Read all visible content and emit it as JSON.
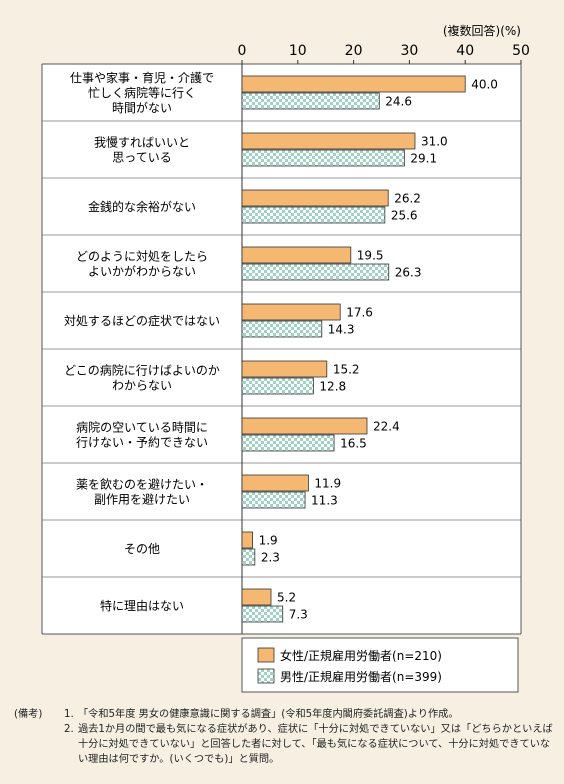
{
  "chart_data": {
    "type": "bar",
    "orientation": "horizontal",
    "unit_label": "(複数回答)(%)",
    "xlim": [
      0,
      50
    ],
    "xticks": [
      "0",
      "10",
      "20",
      "30",
      "40",
      "50"
    ],
    "grid": false,
    "categories": [
      [
        "仕事や家事・育児・介護で",
        "忙しく病院等に行く",
        "時間がない"
      ],
      [
        "我慢すればいいと",
        "思っている"
      ],
      [
        "金銭的な余裕がない"
      ],
      [
        "どのように対処をしたら",
        "よいかがわからない"
      ],
      [
        "対処するほどの症状ではない"
      ],
      [
        "どこの病院に行けばよいのか",
        "わからない"
      ],
      [
        "病院の空いている時間に",
        "行けない・予約できない"
      ],
      [
        "薬を飲むのを避けたい・",
        "副作用を避けたい"
      ],
      [
        "その他"
      ],
      [
        "特に理由はない"
      ]
    ],
    "series": [
      {
        "name": "女性/正規雇用労働者(n=210)",
        "color": "#f5b873",
        "pattern": "solid",
        "values": [
          40.0,
          31.0,
          26.2,
          19.5,
          17.6,
          15.2,
          22.4,
          11.9,
          1.9,
          5.2
        ],
        "labels": [
          "40.0",
          "31.0",
          "26.2",
          "19.5",
          "17.6",
          "15.2",
          "22.4",
          "11.9",
          "1.9",
          "5.2"
        ]
      },
      {
        "name": "男性/正規雇用労働者(n=399)",
        "color": "#9ed2c3",
        "pattern": "checker",
        "values": [
          24.6,
          29.1,
          25.6,
          26.3,
          14.3,
          12.8,
          16.5,
          11.3,
          2.3,
          7.3
        ],
        "labels": [
          "24.6",
          "29.1",
          "25.6",
          "26.3",
          "14.3",
          "12.8",
          "16.5",
          "11.3",
          "2.3",
          "7.3"
        ]
      }
    ],
    "legend_position": "bottom-right"
  },
  "notes": {
    "head": "(備考)",
    "items": [
      {
        "num": "1.",
        "text": "「令和5年度 男女の健康意識に関する調査」(令和5年度内閣府委託調査)より作成。"
      },
      {
        "num": "2.",
        "text": "過去1か月の間で最も気になる症状があり、症状に「十分に対処できていない」又は「どちらかといえば十分に対処できていない」と回答した者に対して、「最も気になる症状について、十分に対処できていない理由は何ですか。(いくつでも)」と質問。"
      }
    ]
  }
}
